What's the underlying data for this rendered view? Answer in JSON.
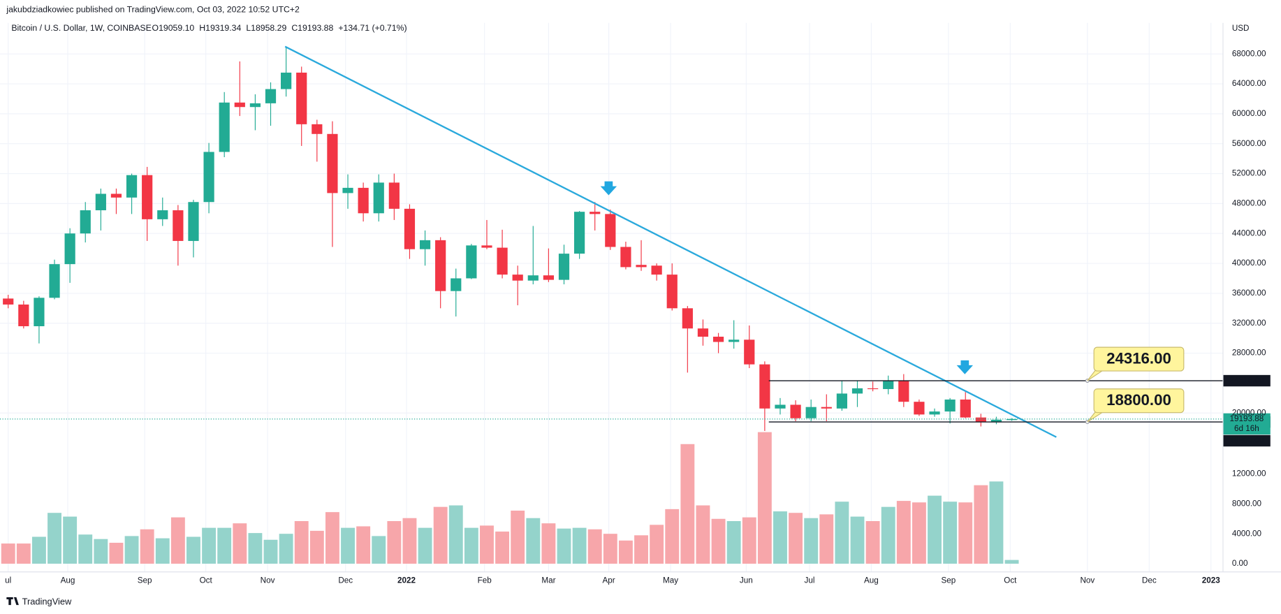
{
  "header": {
    "publisher": "jakubdziadkowiec published on TradingView.com, Oct 03, 2022 10:52 UTC+2",
    "symbol": "Bitcoin / U.S. Dollar, 1W, COINBASE",
    "ohlc": [
      "O19059.10",
      "H19319.34",
      "L18958.29",
      "C19193.88",
      "+134.71 (+0.71%)"
    ],
    "currency": "USD",
    "countdown": "6d 16h",
    "brand": "TradingView"
  },
  "chart_data": {
    "type": "candlestick",
    "categories": [
      null,
      null,
      null,
      null,
      null,
      null,
      null,
      null,
      null,
      null,
      null,
      null,
      null,
      null,
      null,
      null,
      null,
      null,
      null,
      null,
      null,
      null,
      null,
      null,
      null,
      null,
      null,
      null,
      null,
      null,
      null,
      null,
      null,
      null,
      null,
      null,
      null,
      null,
      null,
      null,
      null,
      null,
      null,
      null,
      null,
      null,
      null,
      null,
      null,
      null,
      null,
      null,
      null,
      null,
      null,
      null,
      null,
      null,
      null,
      null,
      null,
      null,
      null,
      null,
      null,
      null
    ],
    "open": [
      35300,
      34500,
      31600,
      35400,
      39900,
      44000,
      47100,
      49300,
      48800,
      51800,
      45900,
      47100,
      43000,
      48200,
      54900,
      61500,
      60900,
      61400,
      63300,
      65500,
      58600,
      57300,
      49400,
      50100,
      46700,
      50800,
      47300,
      41900,
      43100,
      36300,
      38000,
      42400,
      42100,
      38500,
      37700,
      38400,
      37800,
      41300,
      46900,
      46600,
      42200,
      39800,
      39700,
      38500,
      34000,
      31300,
      30200,
      29500,
      29800,
      26500,
      20600,
      21100,
      19300,
      20800,
      20600,
      22600,
      23300,
      23200,
      24300,
      21500,
      19800,
      20200,
      21800,
      19400,
      18800,
      19059.1
    ],
    "high": [
      35800,
      35000,
      35600,
      40500,
      44700,
      48200,
      50000,
      50000,
      52000,
      52900,
      48800,
      47800,
      48500,
      56100,
      62900,
      67000,
      62600,
      64200,
      69000,
      66300,
      59200,
      59000,
      51900,
      50800,
      51900,
      52000,
      47900,
      44400,
      43500,
      39300,
      42600,
      45800,
      44500,
      39700,
      45000,
      42000,
      42500,
      47000,
      48200,
      47200,
      42900,
      43100,
      40000,
      40000,
      34300,
      32500,
      30700,
      32400,
      31700,
      26900,
      22000,
      21700,
      21800,
      22500,
      24300,
      24300,
      24200,
      25000,
      25200,
      21800,
      20600,
      22000,
      22800,
      19900,
      19500,
      19319.34
    ],
    "low": [
      34000,
      31300,
      29300,
      35200,
      37400,
      42800,
      44400,
      46600,
      46600,
      43000,
      45000,
      39700,
      40800,
      46700,
      54200,
      59700,
      57800,
      58400,
      62300,
      55700,
      53600,
      42200,
      47300,
      45600,
      45600,
      45800,
      40600,
      39700,
      34000,
      32900,
      37900,
      41900,
      38000,
      34400,
      37200,
      37500,
      37200,
      40600,
      44400,
      41800,
      39200,
      39000,
      37700,
      33700,
      25400,
      29000,
      28000,
      28600,
      26000,
      17600,
      19800,
      18900,
      18900,
      18900,
      20300,
      20800,
      22900,
      22500,
      20800,
      19600,
      19500,
      18600,
      19300,
      18200,
      18500,
      18958.29
    ],
    "close": [
      34500,
      31600,
      35400,
      39900,
      44000,
      47100,
      49300,
      48800,
      51800,
      45900,
      47100,
      43000,
      48200,
      54900,
      61500,
      60900,
      61400,
      63300,
      65500,
      58600,
      57300,
      49400,
      50100,
      46700,
      50800,
      47300,
      41900,
      43100,
      36300,
      38000,
      42400,
      42100,
      38500,
      37700,
      38400,
      37800,
      41300,
      46900,
      46600,
      42200,
      39500,
      39500,
      38500,
      34000,
      31300,
      30200,
      29500,
      29800,
      26500,
      20600,
      21100,
      19300,
      20800,
      20600,
      22600,
      23300,
      23200,
      24300,
      21500,
      19800,
      20200,
      21800,
      19400,
      18800,
      19100,
      19193.88
    ],
    "volume": [
      2700,
      2700,
      3600,
      6800,
      6300,
      3900,
      3300,
      2800,
      3700,
      4600,
      3400,
      6200,
      3600,
      4800,
      4800,
      5400,
      4100,
      3200,
      4000,
      5700,
      4400,
      6900,
      4800,
      5000,
      3700,
      5700,
      6100,
      4800,
      7600,
      7800,
      4800,
      5100,
      4300,
      7100,
      6100,
      5400,
      4700,
      4800,
      4600,
      4000,
      3100,
      3800,
      5200,
      7300,
      16000,
      7800,
      6000,
      5700,
      6200,
      17600,
      7000,
      6800,
      6100,
      6600,
      8300,
      6300,
      5700,
      7600,
      8400,
      8200,
      9100,
      8300,
      8200,
      10500,
      11000,
      500
    ],
    "up_color": "#22ab94",
    "down_color": "#f23645",
    "volume_up_color": "#94d3cb",
    "volume_down_color": "#f7a6aa",
    "xlim": [
      -0.53,
      78.68
    ],
    "xticks": [
      {
        "value": 0,
        "label": "ul"
      },
      {
        "value": 3.86,
        "label": "Aug"
      },
      {
        "value": 8.84,
        "label": "Sep"
      },
      {
        "value": 12.8,
        "label": "Oct"
      },
      {
        "value": 16.8,
        "label": "Nov"
      },
      {
        "value": 21.85,
        "label": "Dec"
      },
      {
        "value": 25.8,
        "label": "2022"
      },
      {
        "value": 30.85,
        "label": "Feb"
      },
      {
        "value": 35,
        "label": "Mar"
      },
      {
        "value": 38.9,
        "label": "Apr"
      },
      {
        "value": 42.9,
        "label": "May"
      },
      {
        "value": 47.8,
        "label": "Jun"
      },
      {
        "value": 51.9,
        "label": "Jul"
      },
      {
        "value": 55.9,
        "label": "Aug"
      },
      {
        "value": 60.9,
        "label": "Sep"
      },
      {
        "value": 64.9,
        "label": "Oct"
      },
      {
        "value": 69.9,
        "label": "Nov"
      },
      {
        "value": 73.9,
        "label": "Dec"
      },
      {
        "value": 77.9,
        "label": "2023"
      }
    ],
    "ylim": [
      -1244,
      72150
    ],
    "yticks": [
      {
        "value": 20000,
        "label": "20000.00"
      },
      {
        "value": 28000,
        "label": "28000.00"
      },
      {
        "value": 32000,
        "label": "32000.00"
      },
      {
        "value": 36000,
        "label": "36000.00"
      },
      {
        "value": 40000,
        "label": "40000.00"
      },
      {
        "value": 44000,
        "label": "44000.00"
      },
      {
        "value": 48000,
        "label": "48000.00"
      },
      {
        "value": 52000,
        "label": "52000.00"
      },
      {
        "value": 56000,
        "label": "56000.00"
      },
      {
        "value": 60000,
        "label": "60000.00"
      },
      {
        "value": 64000,
        "label": "64000.00"
      },
      {
        "value": 68000,
        "label": "68000.00"
      }
    ],
    "y2lim": [
      -1100,
      72350
    ],
    "y2ticks": [
      {
        "value": 0,
        "label": "0.00"
      },
      {
        "value": 4000,
        "label": "4000.00"
      },
      {
        "value": 8000,
        "label": "8000.00"
      },
      {
        "value": 12000,
        "label": "12000.00"
      }
    ],
    "grid": true,
    "levels": [
      {
        "value": 24316,
        "label": "24316.00"
      },
      {
        "value": 18800,
        "label": "18800.00"
      }
    ],
    "last_price": {
      "value": 19193.88,
      "label": "19193.88"
    }
  }
}
